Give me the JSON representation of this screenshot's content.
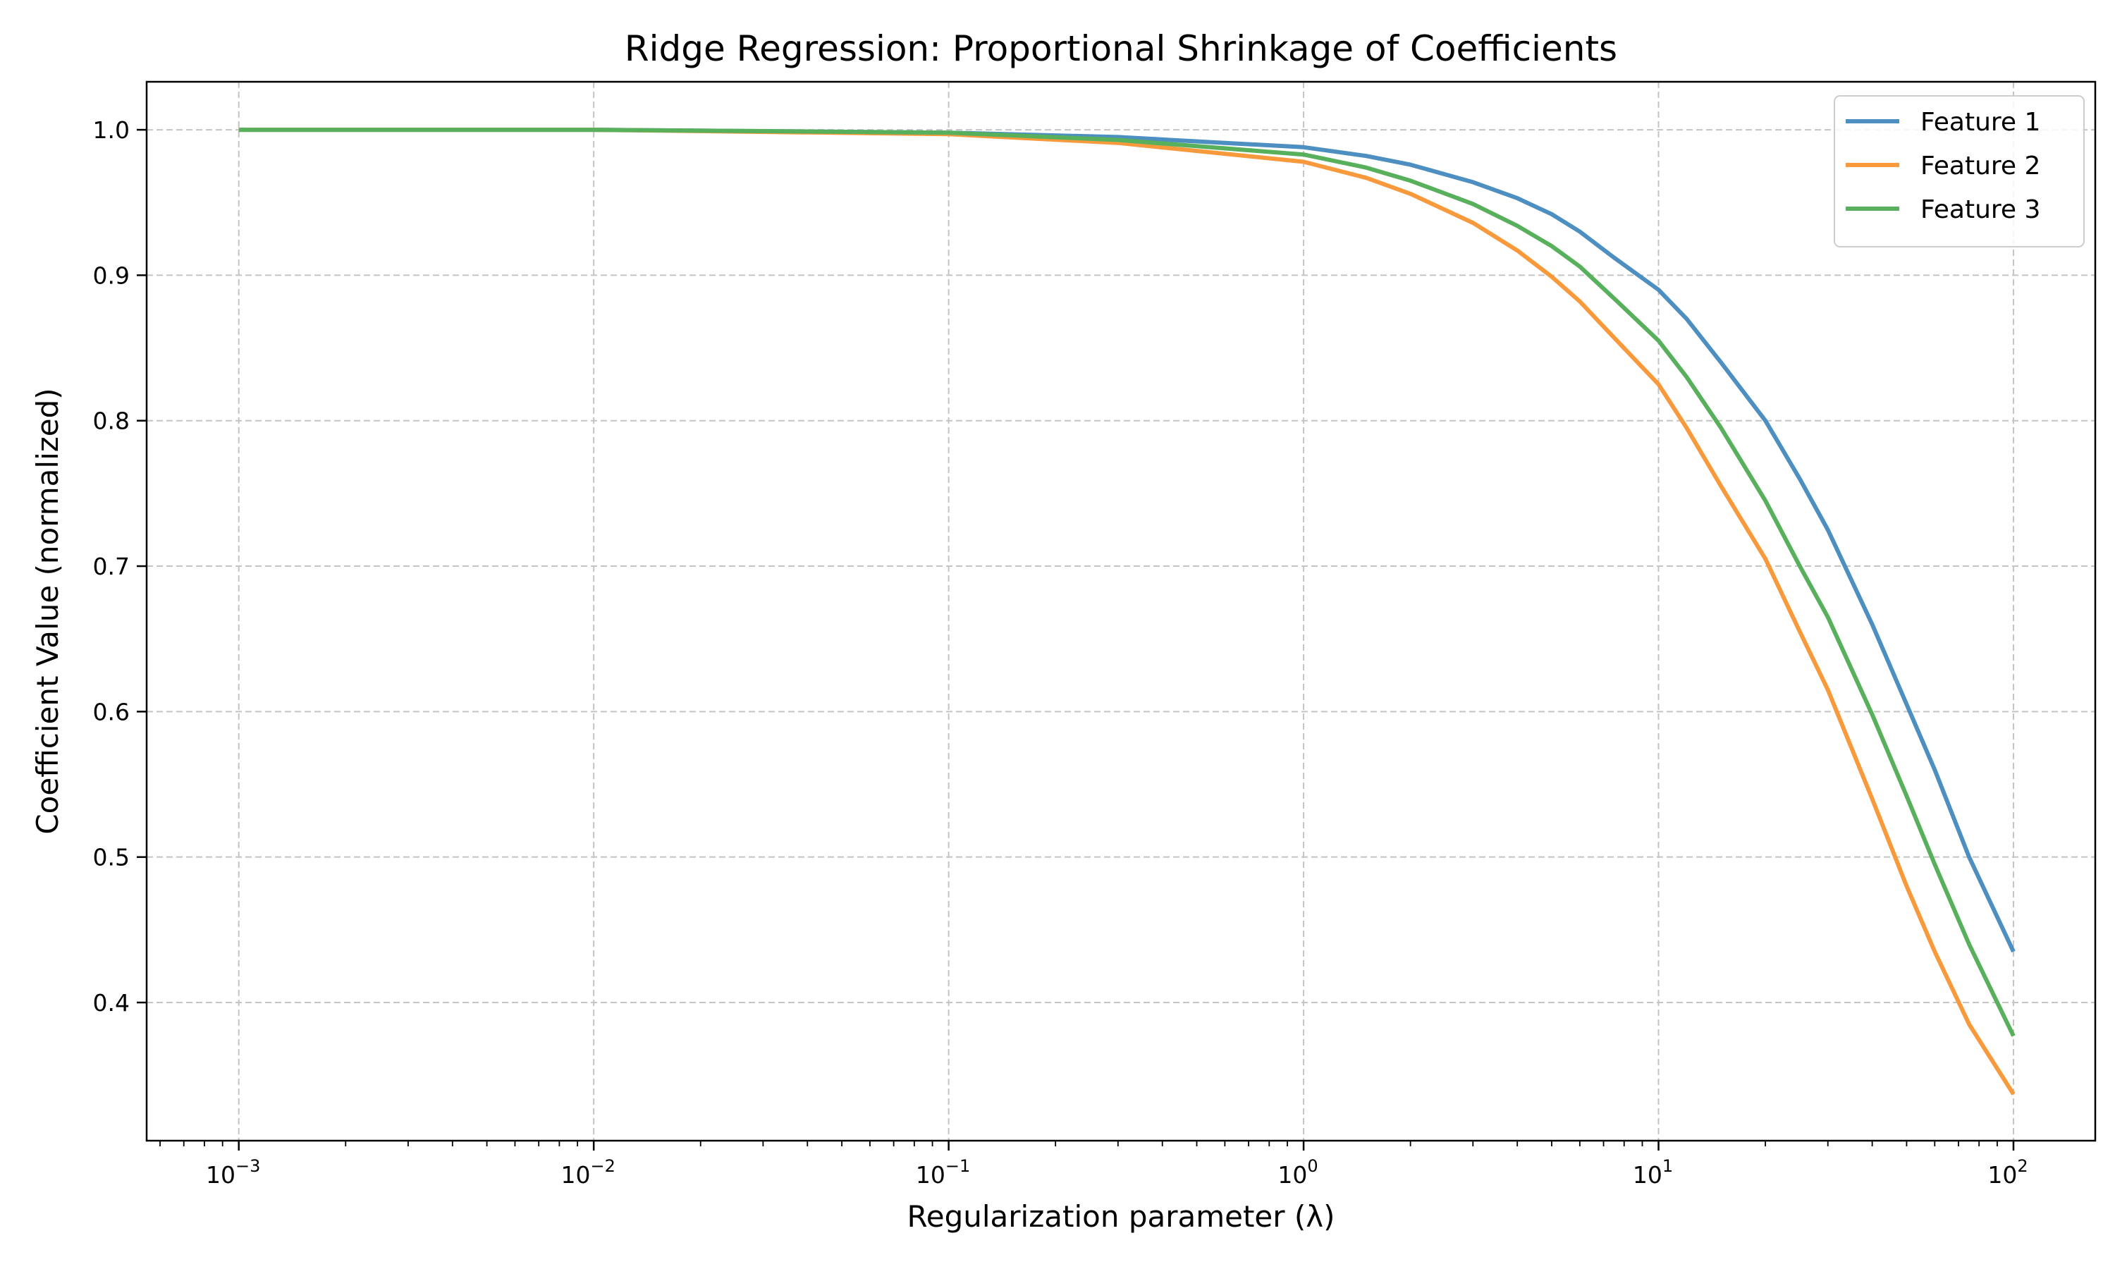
{
  "chart_data": {
    "type": "line",
    "title": "Ridge Regression: Proportional Shrinkage of Coefficients",
    "xlabel": "Regularization parameter (λ)",
    "ylabel": "Coefficient Value (normalized)",
    "x_scale": "log",
    "x_base_label": "10",
    "xlim": [
      0.00055,
      170
    ],
    "ylim": [
      0.305,
      1.033
    ],
    "x_ticks": [
      {
        "value": 0.001,
        "exp": "−3"
      },
      {
        "value": 0.01,
        "exp": "−2"
      },
      {
        "value": 0.1,
        "exp": "−1"
      },
      {
        "value": 1,
        "exp": "0"
      },
      {
        "value": 10,
        "exp": "1"
      },
      {
        "value": 100,
        "exp": "2"
      }
    ],
    "y_ticks": [
      {
        "value": 0.4,
        "label": "0.4"
      },
      {
        "value": 0.5,
        "label": "0.5"
      },
      {
        "value": 0.6,
        "label": "0.6"
      },
      {
        "value": 0.7,
        "label": "0.7"
      },
      {
        "value": 0.8,
        "label": "0.8"
      },
      {
        "value": 0.9,
        "label": "0.9"
      },
      {
        "value": 1.0,
        "label": "1.0"
      }
    ],
    "grid": true,
    "grid_style": "dashed",
    "legend_position": "top-right",
    "x": [
      0.001,
      0.01,
      0.1,
      0.3,
      1,
      1.5,
      2,
      3,
      4,
      5,
      6,
      7.5,
      10,
      12,
      15,
      20,
      25,
      30,
      40,
      50,
      60,
      75,
      100
    ],
    "series": [
      {
        "name": "Feature 1",
        "color": "#4c8fc0",
        "values": [
          1.0,
          1.0,
          0.998,
          0.995,
          0.988,
          0.982,
          0.976,
          0.964,
          0.953,
          0.942,
          0.93,
          0.912,
          0.89,
          0.87,
          0.84,
          0.8,
          0.76,
          0.725,
          0.66,
          0.605,
          0.56,
          0.5,
          0.435
        ]
      },
      {
        "name": "Feature 2",
        "color": "#f89a3c",
        "values": [
          1.0,
          1.0,
          0.997,
          0.991,
          0.978,
          0.967,
          0.956,
          0.936,
          0.917,
          0.899,
          0.882,
          0.857,
          0.825,
          0.795,
          0.755,
          0.705,
          0.655,
          0.615,
          0.54,
          0.48,
          0.435,
          0.385,
          0.337
        ]
      },
      {
        "name": "Feature 3",
        "color": "#58b05c",
        "values": [
          1.0,
          1.0,
          0.998,
          0.993,
          0.983,
          0.974,
          0.965,
          0.949,
          0.934,
          0.92,
          0.906,
          0.884,
          0.855,
          0.83,
          0.795,
          0.745,
          0.7,
          0.665,
          0.598,
          0.542,
          0.495,
          0.44,
          0.377
        ]
      }
    ]
  }
}
